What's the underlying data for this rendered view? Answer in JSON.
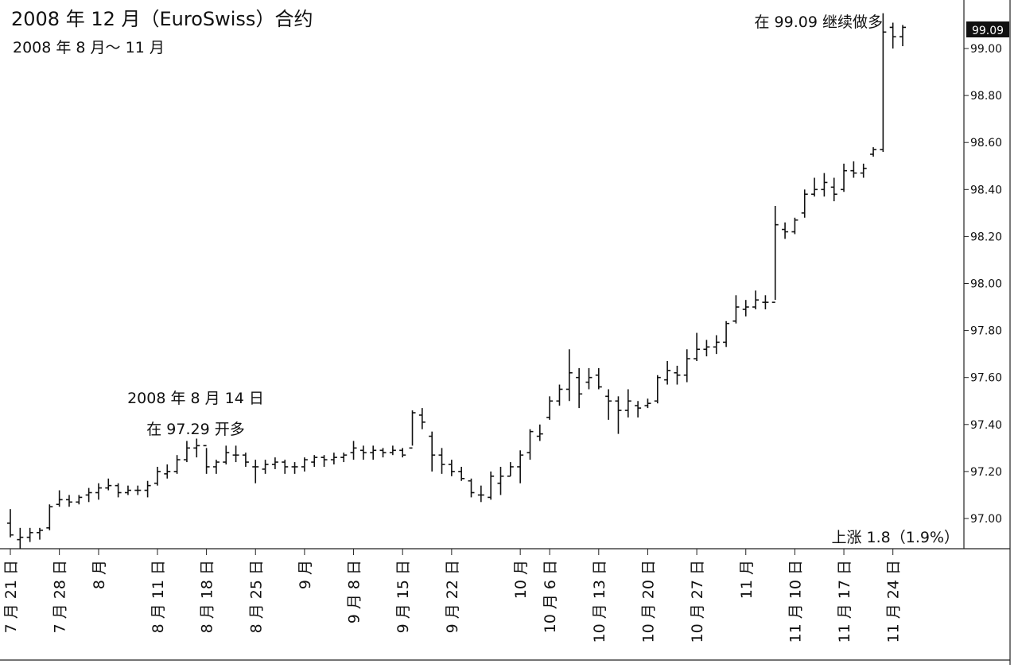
{
  "chart_data": {
    "type": "ohlc",
    "title": "2008 年 12 月（EuroSwiss）合约",
    "subtitle": "2008 年 8 月～ 11 月",
    "ylim": [
      96.88,
      99.15
    ],
    "y_ticks": [
      "97.00",
      "97.20",
      "97.40",
      "97.60",
      "97.80",
      "98.00",
      "98.20",
      "98.40",
      "98.60",
      "98.80",
      "99.00"
    ],
    "last_price": "99.09",
    "grid": false,
    "x_tick_labels": [
      {
        "label": "7 月 21 日",
        "bar": 0
      },
      {
        "label": "7 月 28 日",
        "bar": 5
      },
      {
        "label": "8 月",
        "bar": 9
      },
      {
        "label": "8 月 11 日",
        "bar": 15
      },
      {
        "label": "8 月 18 日",
        "bar": 20
      },
      {
        "label": "8 月 25 日",
        "bar": 25
      },
      {
        "label": "9 月",
        "bar": 30
      },
      {
        "label": "9 月 8 日",
        "bar": 35
      },
      {
        "label": "9 月 15 日",
        "bar": 40
      },
      {
        "label": "9 月 22 日",
        "bar": 45
      },
      {
        "label": "10 月",
        "bar": 52
      },
      {
        "label": "10 月 6 日",
        "bar": 55
      },
      {
        "label": "10 月 13 日",
        "bar": 60
      },
      {
        "label": "10 月 20 日",
        "bar": 65
      },
      {
        "label": "10 月 27 日",
        "bar": 70
      },
      {
        "label": "11 月",
        "bar": 75
      },
      {
        "label": "11 月 10 日",
        "bar": 80
      },
      {
        "label": "11 月 17 日",
        "bar": 85
      },
      {
        "label": "11 月 24 日",
        "bar": 90
      }
    ],
    "bars": [
      {
        "o": 96.98,
        "h": 97.04,
        "l": 96.92,
        "c": 96.93
      },
      {
        "o": 96.91,
        "h": 96.96,
        "l": 96.87,
        "c": 96.92
      },
      {
        "o": 96.92,
        "h": 96.96,
        "l": 96.9,
        "c": 96.94
      },
      {
        "o": 96.94,
        "h": 96.96,
        "l": 96.91,
        "c": 96.95
      },
      {
        "o": 96.96,
        "h": 97.06,
        "l": 96.95,
        "c": 97.05
      },
      {
        "o": 97.06,
        "h": 97.12,
        "l": 97.05,
        "c": 97.08
      },
      {
        "o": 97.08,
        "h": 97.1,
        "l": 97.05,
        "c": 97.07
      },
      {
        "o": 97.07,
        "h": 97.1,
        "l": 97.06,
        "c": 97.09
      },
      {
        "o": 97.1,
        "h": 97.13,
        "l": 97.07,
        "c": 97.11
      },
      {
        "o": 97.11,
        "h": 97.15,
        "l": 97.08,
        "c": 97.13
      },
      {
        "o": 97.13,
        "h": 97.17,
        "l": 97.12,
        "c": 97.14
      },
      {
        "o": 97.14,
        "h": 97.15,
        "l": 97.09,
        "c": 97.11
      },
      {
        "o": 97.11,
        "h": 97.14,
        "l": 97.1,
        "c": 97.12
      },
      {
        "o": 97.12,
        "h": 97.14,
        "l": 97.1,
        "c": 97.12
      },
      {
        "o": 97.12,
        "h": 97.16,
        "l": 97.09,
        "c": 97.14
      },
      {
        "o": 97.15,
        "h": 97.22,
        "l": 97.14,
        "c": 97.2
      },
      {
        "o": 97.19,
        "h": 97.23,
        "l": 97.17,
        "c": 97.2
      },
      {
        "o": 97.2,
        "h": 97.27,
        "l": 97.19,
        "c": 97.25
      },
      {
        "o": 97.25,
        "h": 97.33,
        "l": 97.24,
        "c": 97.3
      },
      {
        "o": 97.3,
        "h": 97.34,
        "l": 97.26,
        "c": 97.31
      },
      {
        "o": 97.31,
        "h": 97.3,
        "l": 97.19,
        "c": 97.22
      },
      {
        "o": 97.22,
        "h": 97.25,
        "l": 97.19,
        "c": 97.24
      },
      {
        "o": 97.24,
        "h": 97.31,
        "l": 97.23,
        "c": 97.28
      },
      {
        "o": 97.27,
        "h": 97.31,
        "l": 97.24,
        "c": 97.27
      },
      {
        "o": 97.27,
        "h": 97.28,
        "l": 97.22,
        "c": 97.24
      },
      {
        "o": 97.22,
        "h": 97.25,
        "l": 97.15,
        "c": 97.22
      },
      {
        "o": 97.21,
        "h": 97.25,
        "l": 97.19,
        "c": 97.23
      },
      {
        "o": 97.23,
        "h": 97.26,
        "l": 97.21,
        "c": 97.24
      },
      {
        "o": 97.24,
        "h": 97.25,
        "l": 97.19,
        "c": 97.22
      },
      {
        "o": 97.22,
        "h": 97.24,
        "l": 97.19,
        "c": 97.22
      },
      {
        "o": 97.22,
        "h": 97.26,
        "l": 97.2,
        "c": 97.25
      },
      {
        "o": 97.24,
        "h": 97.27,
        "l": 97.22,
        "c": 97.26
      },
      {
        "o": 97.26,
        "h": 97.27,
        "l": 97.22,
        "c": 97.25
      },
      {
        "o": 97.25,
        "h": 97.28,
        "l": 97.23,
        "c": 97.26
      },
      {
        "o": 97.26,
        "h": 97.28,
        "l": 97.24,
        "c": 97.27
      },
      {
        "o": 97.28,
        "h": 97.33,
        "l": 97.25,
        "c": 97.3
      },
      {
        "o": 97.29,
        "h": 97.31,
        "l": 97.25,
        "c": 97.28
      },
      {
        "o": 97.28,
        "h": 97.31,
        "l": 97.25,
        "c": 97.29
      },
      {
        "o": 97.29,
        "h": 97.3,
        "l": 97.26,
        "c": 97.28
      },
      {
        "o": 97.28,
        "h": 97.31,
        "l": 97.27,
        "c": 97.29
      },
      {
        "o": 97.29,
        "h": 97.3,
        "l": 97.26,
        "c": 97.27
      },
      {
        "o": 97.3,
        "h": 97.46,
        "l": 97.31,
        "c": 97.45
      },
      {
        "o": 97.44,
        "h": 97.47,
        "l": 97.38,
        "c": 97.41
      },
      {
        "o": 97.35,
        "h": 97.37,
        "l": 97.2,
        "c": 97.27
      },
      {
        "o": 97.27,
        "h": 97.3,
        "l": 97.19,
        "c": 97.23
      },
      {
        "o": 97.23,
        "h": 97.25,
        "l": 97.18,
        "c": 97.2
      },
      {
        "o": 97.2,
        "h": 97.22,
        "l": 97.16,
        "c": 97.17
      },
      {
        "o": 97.16,
        "h": 97.17,
        "l": 97.09,
        "c": 97.11
      },
      {
        "o": 97.1,
        "h": 97.14,
        "l": 97.07,
        "c": 97.1
      },
      {
        "o": 97.09,
        "h": 97.2,
        "l": 97.08,
        "c": 97.18
      },
      {
        "o": 97.15,
        "h": 97.22,
        "l": 97.1,
        "c": 97.18
      },
      {
        "o": 97.18,
        "h": 97.24,
        "l": 97.18,
        "c": 97.22
      },
      {
        "o": 97.22,
        "h": 97.29,
        "l": 97.15,
        "c": 97.27
      },
      {
        "o": 97.28,
        "h": 97.38,
        "l": 97.25,
        "c": 97.37
      },
      {
        "o": 97.35,
        "h": 97.4,
        "l": 97.33,
        "c": 97.36
      },
      {
        "o": 97.43,
        "h": 97.52,
        "l": 97.42,
        "c": 97.5
      },
      {
        "o": 97.5,
        "h": 97.57,
        "l": 97.48,
        "c": 97.55
      },
      {
        "o": 97.55,
        "h": 97.72,
        "l": 97.5,
        "c": 97.62
      },
      {
        "o": 97.6,
        "h": 97.64,
        "l": 97.47,
        "c": 97.53
      },
      {
        "o": 97.58,
        "h": 97.64,
        "l": 97.55,
        "c": 97.6
      },
      {
        "o": 97.61,
        "h": 97.64,
        "l": 97.55,
        "c": 97.56
      },
      {
        "o": 97.52,
        "h": 97.55,
        "l": 97.42,
        "c": 97.5
      },
      {
        "o": 97.5,
        "h": 97.52,
        "l": 97.36,
        "c": 97.46
      },
      {
        "o": 97.46,
        "h": 97.55,
        "l": 97.43,
        "c": 97.5
      },
      {
        "o": 97.48,
        "h": 97.5,
        "l": 97.43,
        "c": 97.47
      },
      {
        "o": 97.48,
        "h": 97.51,
        "l": 97.47,
        "c": 97.49
      },
      {
        "o": 97.5,
        "h": 97.61,
        "l": 97.49,
        "c": 97.6
      },
      {
        "o": 97.59,
        "h": 97.67,
        "l": 97.57,
        "c": 97.63
      },
      {
        "o": 97.62,
        "h": 97.65,
        "l": 97.57,
        "c": 97.61
      },
      {
        "o": 97.61,
        "h": 97.72,
        "l": 97.58,
        "c": 97.68
      },
      {
        "o": 97.68,
        "h": 97.79,
        "l": 97.67,
        "c": 97.72
      },
      {
        "o": 97.72,
        "h": 97.76,
        "l": 97.69,
        "c": 97.73
      },
      {
        "o": 97.73,
        "h": 97.78,
        "l": 97.7,
        "c": 97.75
      },
      {
        "o": 97.75,
        "h": 97.84,
        "l": 97.73,
        "c": 97.83
      },
      {
        "o": 97.84,
        "h": 97.95,
        "l": 97.83,
        "c": 97.9
      },
      {
        "o": 97.89,
        "h": 97.93,
        "l": 97.86,
        "c": 97.9
      },
      {
        "o": 97.9,
        "h": 97.97,
        "l": 97.89,
        "c": 97.93
      },
      {
        "o": 97.92,
        "h": 97.95,
        "l": 97.89,
        "c": 97.92
      },
      {
        "o": 97.92,
        "h": 98.33,
        "l": 97.93,
        "c": 98.25
      },
      {
        "o": 98.23,
        "h": 98.26,
        "l": 98.19,
        "c": 98.22
      },
      {
        "o": 98.22,
        "h": 98.28,
        "l": 98.21,
        "c": 98.27
      },
      {
        "o": 98.3,
        "h": 98.4,
        "l": 98.28,
        "c": 98.38
      },
      {
        "o": 98.38,
        "h": 98.45,
        "l": 98.37,
        "c": 98.4
      },
      {
        "o": 98.4,
        "h": 98.47,
        "l": 98.37,
        "c": 98.43
      },
      {
        "o": 98.41,
        "h": 98.45,
        "l": 98.35,
        "c": 98.38
      },
      {
        "o": 98.4,
        "h": 98.51,
        "l": 98.39,
        "c": 98.48
      },
      {
        "o": 98.48,
        "h": 98.52,
        "l": 98.45,
        "c": 98.47
      },
      {
        "o": 98.47,
        "h": 98.51,
        "l": 98.45,
        "c": 98.49
      },
      {
        "o": 98.55,
        "h": 98.58,
        "l": 98.54,
        "c": 98.57
      },
      {
        "o": 98.57,
        "h": 99.15,
        "l": 98.56,
        "c": 99.07
      },
      {
        "o": 99.09,
        "h": 99.11,
        "l": 99.0,
        "c": 99.05
      },
      {
        "o": 99.05,
        "h": 99.1,
        "l": 99.01,
        "c": 99.09
      }
    ],
    "annotations": [
      {
        "line1": "2008 年 8 月 14 日",
        "line2": "在 97.29 开多"
      },
      {
        "text": "在 99.09 继续做多"
      },
      {
        "text": "上涨 1.8（1.9%）"
      }
    ]
  }
}
